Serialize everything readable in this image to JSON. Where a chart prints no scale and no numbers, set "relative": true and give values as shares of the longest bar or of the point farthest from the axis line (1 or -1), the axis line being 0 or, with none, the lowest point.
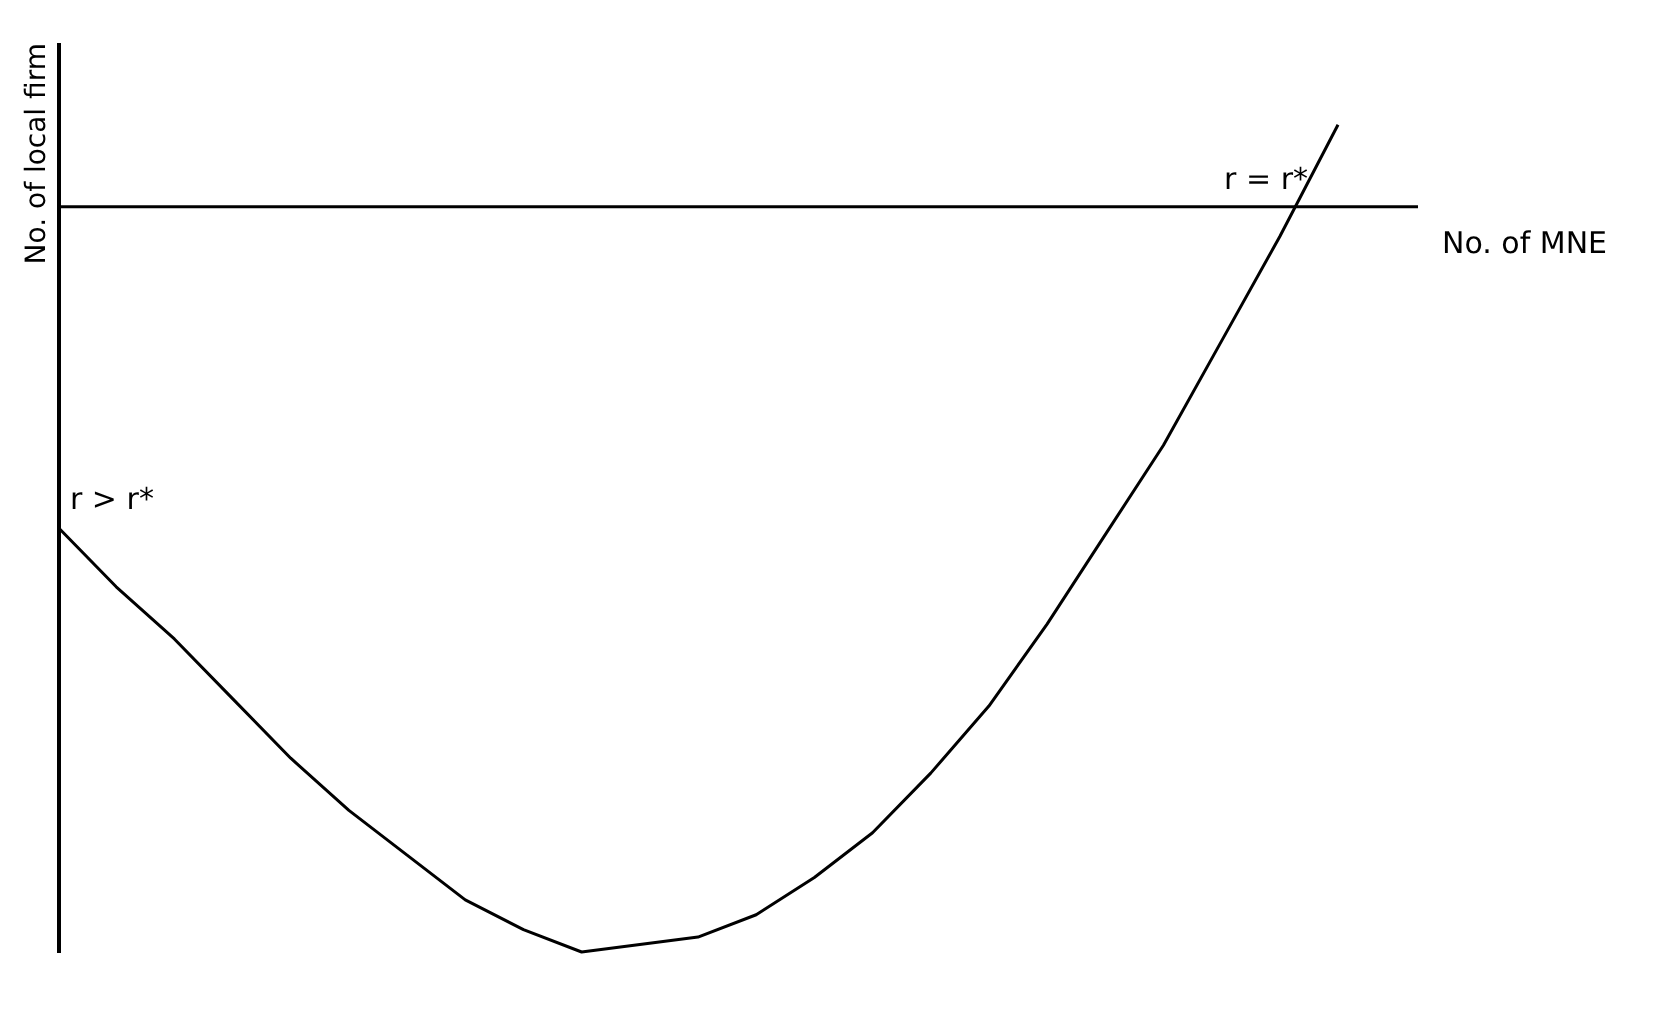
{
  "chart_data": {
    "type": "line",
    "relative": true,
    "xlabel": "No. of MNE",
    "ylabel": "No. of local firm",
    "categories": [
      null,
      null,
      null,
      null,
      null,
      null,
      null,
      null,
      null,
      null,
      null,
      null,
      null,
      null,
      null,
      null,
      null,
      null,
      null,
      null,
      null,
      null,
      null
    ],
    "series": [
      {
        "color": "#000000",
        "values": [
          -0.43,
          -0.51,
          -0.58,
          -0.66,
          -0.74,
          -0.81,
          -0.87,
          -0.93,
          -0.97,
          -1.0,
          -0.99,
          -0.98,
          -0.95,
          -0.9,
          -0.84,
          -0.76,
          -0.67,
          -0.56,
          -0.44,
          -0.32,
          -0.18,
          -0.04,
          0.11
        ]
      }
    ],
    "annotations": [
      "r > r*",
      "r = r*"
    ],
    "grid": false
  }
}
